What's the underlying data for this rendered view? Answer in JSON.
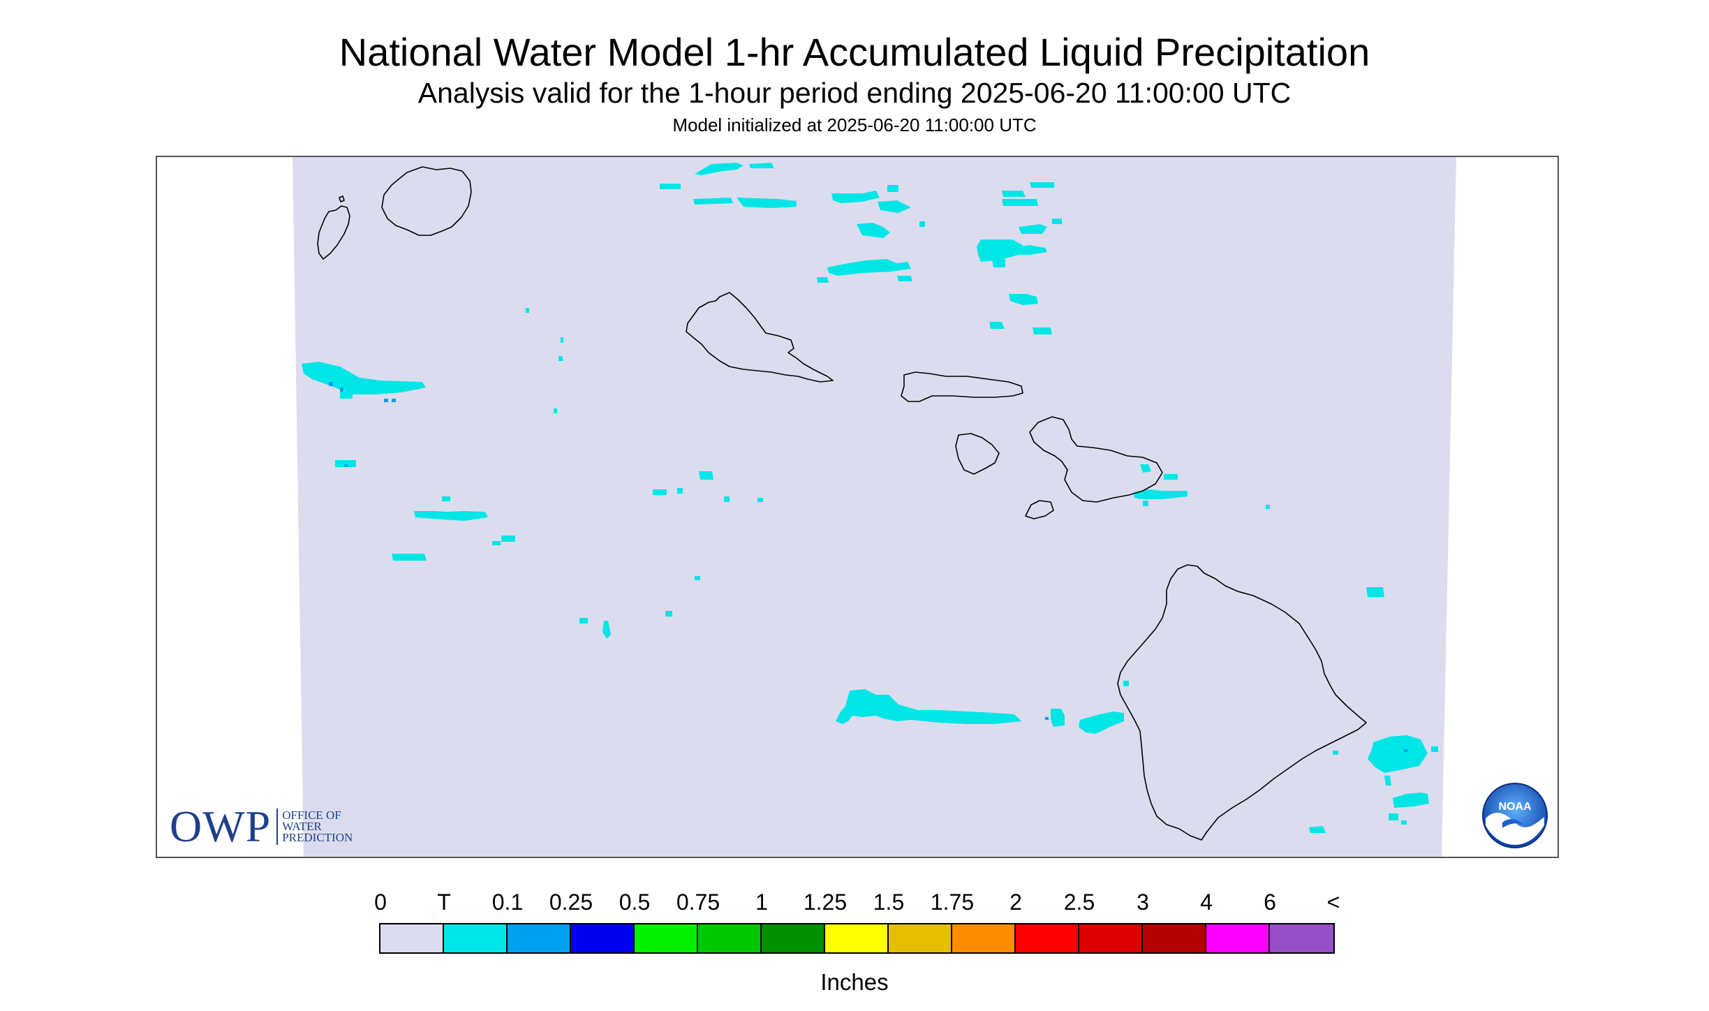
{
  "title": "National Water Model 1-hr Accumulated Liquid Precipitation",
  "subtitle": "Analysis valid for the 1-hour period ending 2025-06-20 11:00:00 UTC",
  "init_text": "Model initialized at 2025-06-20 11:00:00 UTC",
  "logo_owp": {
    "mark": "OWP",
    "line1": "OFFICE OF",
    "line2": "WATER",
    "line3": "PREDICTION"
  },
  "logo_noaa": {
    "text": "NOAA"
  },
  "legend": {
    "labels": [
      "0",
      "T",
      "0.1",
      "0.25",
      "0.5",
      "0.75",
      "1",
      "1.25",
      "1.5",
      "1.75",
      "2",
      "2.5",
      "3",
      "4",
      "6",
      "<"
    ],
    "colors": [
      "#dcdcef",
      "#00e6e6",
      "#00a0f0",
      "#0000f0",
      "#00f000",
      "#00c800",
      "#009000",
      "#ffff00",
      "#e6be00",
      "#ff8c00",
      "#ff0000",
      "#dc0000",
      "#b40000",
      "#ff00ff",
      "#9650c8"
    ],
    "units": "Inches"
  },
  "colors": {
    "domain_fill": "#dcdcef",
    "trace": "#00e6e6",
    "light": "#00a0f0",
    "coast": "#000000"
  },
  "map_layers": [
    "Kauai",
    "Niihau",
    "Oahu",
    "Molokai",
    "Lanai",
    "Maui",
    "Kahoolawe",
    "Hawaii"
  ]
}
